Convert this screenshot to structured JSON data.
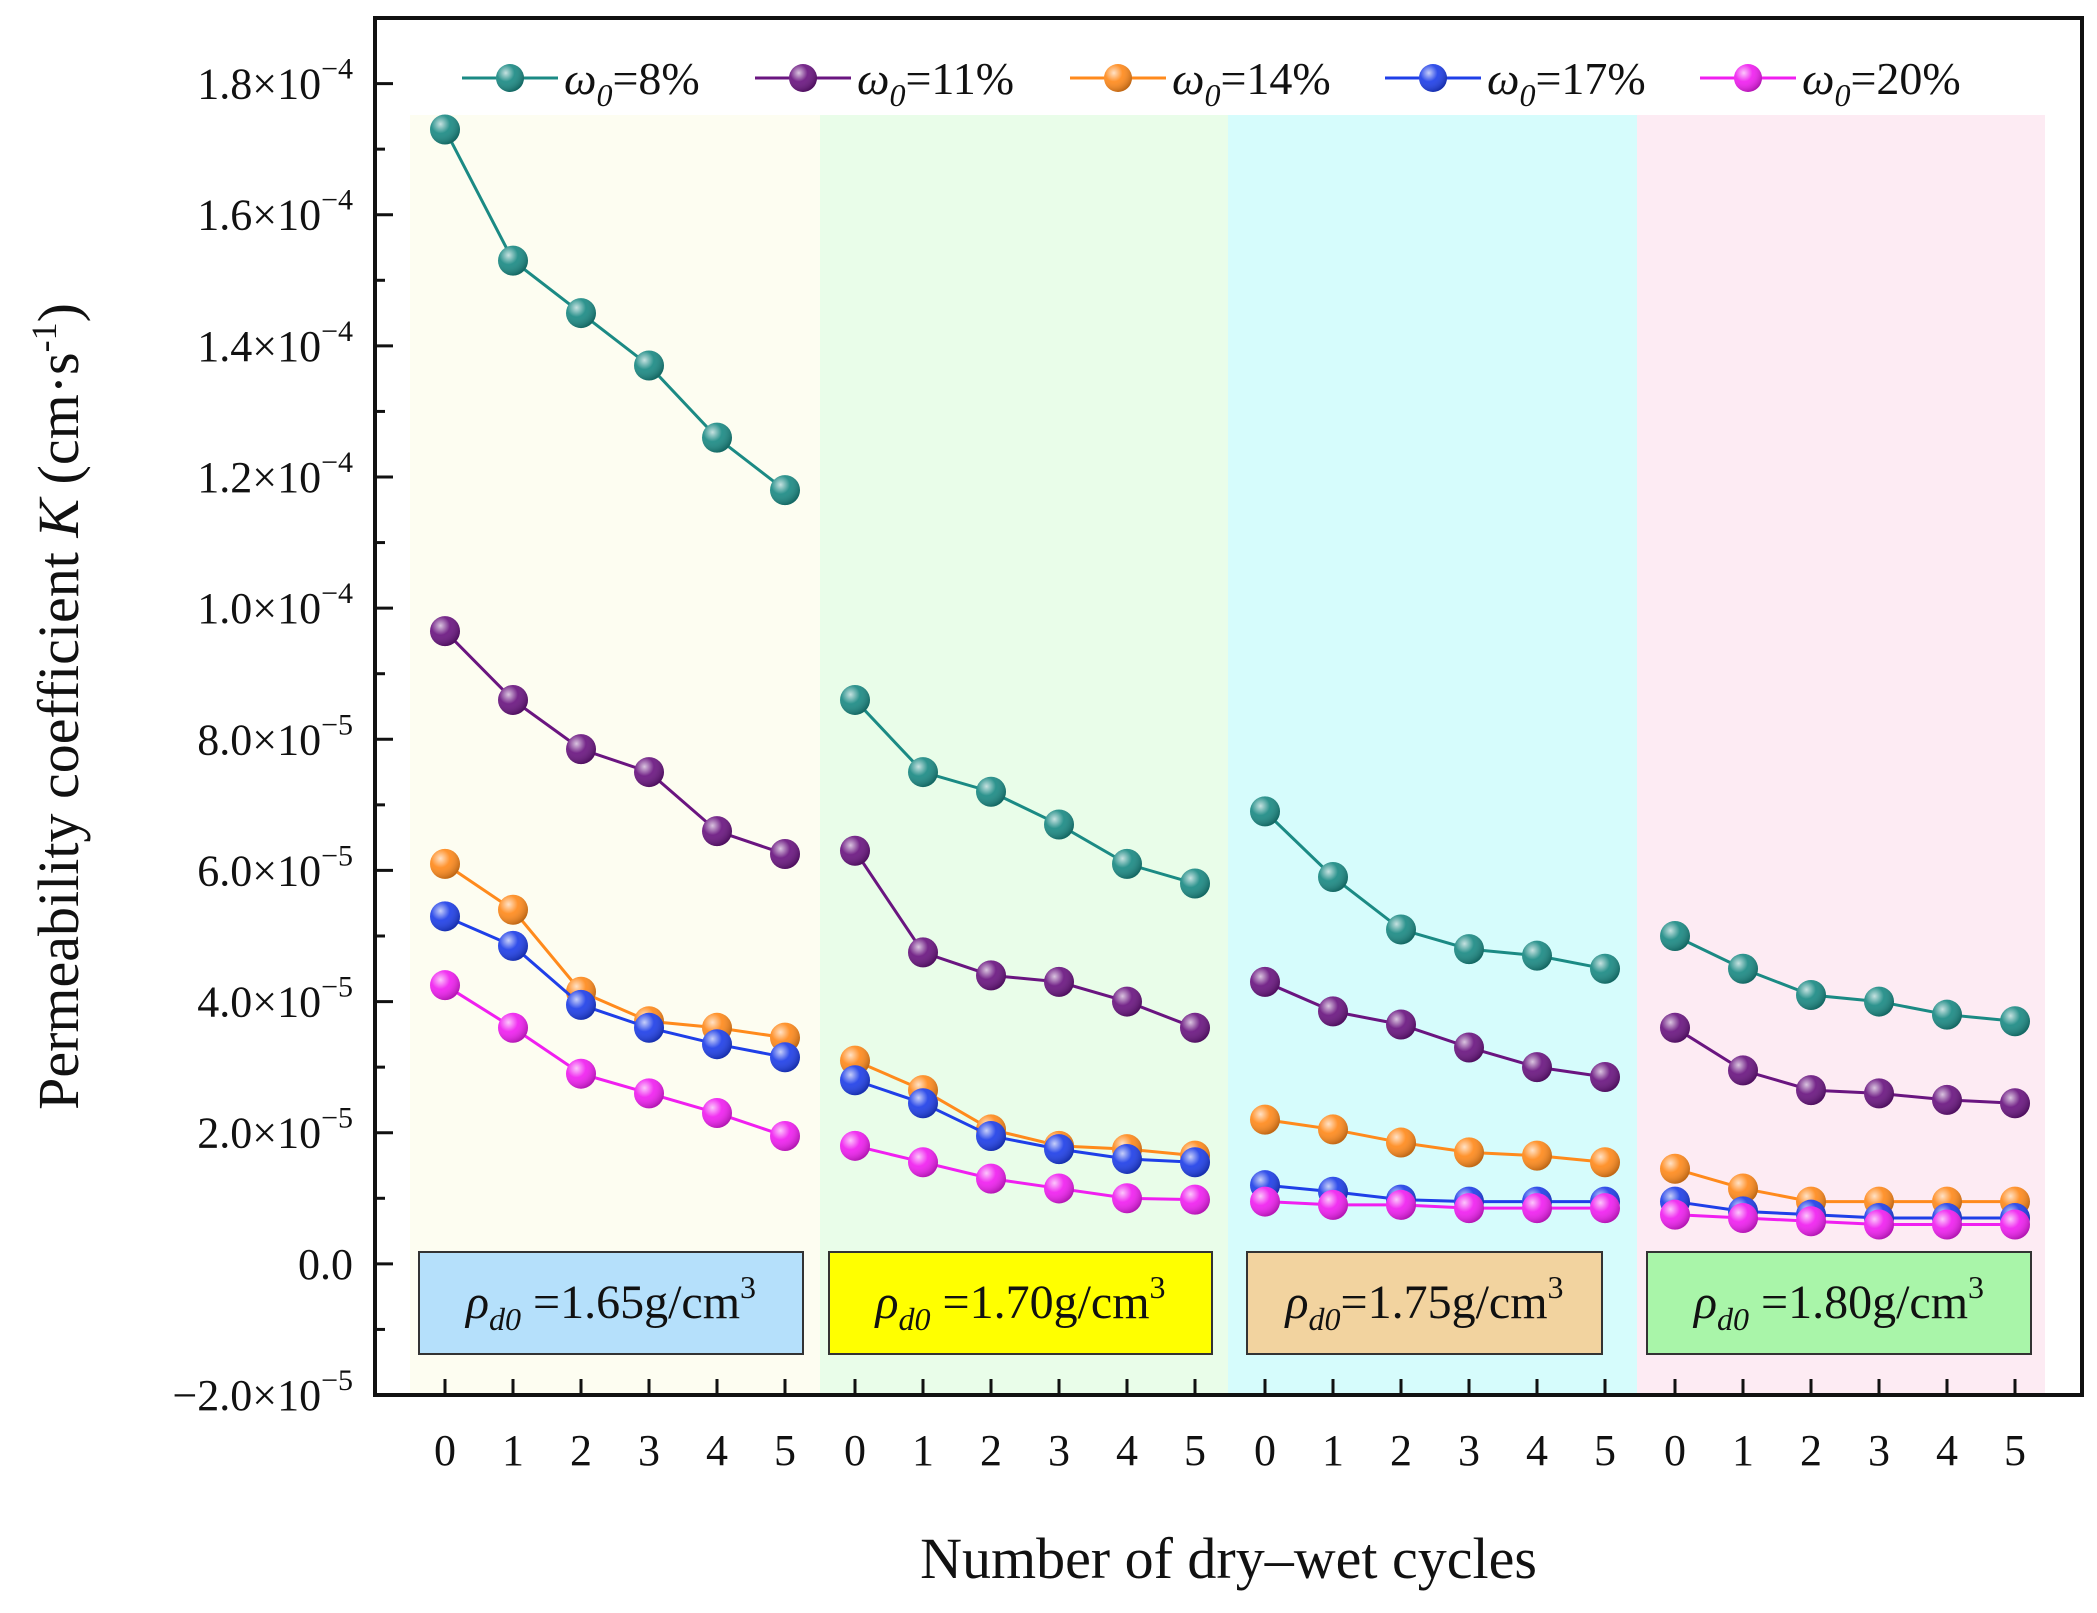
{
  "chart_data": {
    "type": "line",
    "title": "",
    "xlabel": "Number of dry–wet cycles",
    "ylabel": "Permeability coefficient K (cm·s⁻¹)",
    "ylabel_parts": {
      "prefix": "Permeability coefficient ",
      "symbol": "K",
      "unit_open": " (cm·s",
      "unit_sup": "-1",
      "unit_close": ")"
    },
    "ylim": [
      -2e-05,
      0.00019
    ],
    "yticks": [
      {
        "value": -2e-05,
        "mantissa": "−2.0×10",
        "exp": "−5"
      },
      {
        "value": 0,
        "mantissa": "0.0",
        "exp": ""
      },
      {
        "value": 2e-05,
        "mantissa": "2.0×10",
        "exp": "−5"
      },
      {
        "value": 4e-05,
        "mantissa": "4.0×10",
        "exp": "−5"
      },
      {
        "value": 6e-05,
        "mantissa": "6.0×10",
        "exp": "−5"
      },
      {
        "value": 8e-05,
        "mantissa": "8.0×10",
        "exp": "−5"
      },
      {
        "value": 0.0001,
        "mantissa": "1.0×10",
        "exp": "−4"
      },
      {
        "value": 0.00012,
        "mantissa": "1.2×10",
        "exp": "−4"
      },
      {
        "value": 0.00014,
        "mantissa": "1.4×10",
        "exp": "−4"
      },
      {
        "value": 0.00016,
        "mantissa": "1.6×10",
        "exp": "−4"
      },
      {
        "value": 0.00018,
        "mantissa": "1.8×10",
        "exp": "−4"
      }
    ],
    "x_ticks": [
      0,
      1,
      2,
      3,
      4,
      5
    ],
    "legend_position": "top",
    "groups": [
      {
        "name": "rho_d0 = 1.65 g/cm3",
        "label_symbol": "ρ",
        "label_sub": "d0",
        "label_text": " =1.65g/cm",
        "label_sup": "3",
        "region_color": "#fdfdf1",
        "label_bg": "#b5e0fb"
      },
      {
        "name": "rho_d0 = 1.70 g/cm3",
        "label_symbol": "ρ",
        "label_sub": "d0",
        "label_text": " =1.70g/cm",
        "label_sup": "3",
        "region_color": "#e9fde9",
        "label_bg": "#ffff00"
      },
      {
        "name": "rho_d0 = 1.75 g/cm3",
        "label_symbol": "ρ",
        "label_sub": "d0",
        "label_text": "=1.75g/cm",
        "label_sup": "3",
        "region_color": "#d6fcfc",
        "label_bg": "#f2d39f"
      },
      {
        "name": "rho_d0 = 1.80 g/cm3",
        "label_symbol": "ρ",
        "label_sub": "d0",
        "label_text": " =1.80g/cm",
        "label_sup": "3",
        "region_color": "#fdebf3",
        "label_bg": "#a9f5a9"
      }
    ],
    "series": [
      {
        "name": "ω0=8%",
        "label_sub": "0",
        "label_rest": "=8%",
        "color": "#1b8a84",
        "values": [
          [
            0.000173,
            0.000153,
            0.000145,
            0.000137,
            0.000126,
            0.000118
          ],
          [
            8.6e-05,
            7.5e-05,
            7.2e-05,
            6.7e-05,
            6.1e-05,
            5.8e-05
          ],
          [
            6.9e-05,
            5.9e-05,
            5.1e-05,
            4.8e-05,
            4.7e-05,
            4.5e-05
          ],
          [
            5e-05,
            4.5e-05,
            4.1e-05,
            4e-05,
            3.8e-05,
            3.7e-05
          ]
        ]
      },
      {
        "name": "ω0=11%",
        "label_sub": "0",
        "label_rest": "=11%",
        "color": "#6a1580",
        "values": [
          [
            9.65e-05,
            8.6e-05,
            7.85e-05,
            7.5e-05,
            6.6e-05,
            6.25e-05
          ],
          [
            6.3e-05,
            4.75e-05,
            4.4e-05,
            4.3e-05,
            4e-05,
            3.6e-05
          ],
          [
            4.3e-05,
            3.85e-05,
            3.65e-05,
            3.3e-05,
            3e-05,
            2.85e-05
          ],
          [
            3.6e-05,
            2.95e-05,
            2.65e-05,
            2.6e-05,
            2.5e-05,
            2.45e-05
          ]
        ]
      },
      {
        "name": "ω0=14%",
        "label_sub": "0",
        "label_rest": "=14%",
        "color": "#ff8a1c",
        "values": [
          [
            6.1e-05,
            5.4e-05,
            4.15e-05,
            3.7e-05,
            3.6e-05,
            3.45e-05
          ],
          [
            3.1e-05,
            2.65e-05,
            2.05e-05,
            1.8e-05,
            1.75e-05,
            1.65e-05
          ],
          [
            2.2e-05,
            2.05e-05,
            1.85e-05,
            1.7e-05,
            1.65e-05,
            1.55e-05
          ],
          [
            1.45e-05,
            1.15e-05,
            9.5e-06,
            9.5e-06,
            9.5e-06,
            9.5e-06
          ]
        ]
      },
      {
        "name": "ω0=17%",
        "label_sub": "0",
        "label_rest": "=17%",
        "color": "#1f3fe8",
        "values": [
          [
            5.3e-05,
            4.85e-05,
            3.95e-05,
            3.6e-05,
            3.35e-05,
            3.15e-05
          ],
          [
            2.8e-05,
            2.45e-05,
            1.95e-05,
            1.75e-05,
            1.6e-05,
            1.55e-05
          ],
          [
            1.2e-05,
            1.1e-05,
            9.8e-06,
            9.5e-06,
            9.5e-06,
            9.5e-06
          ],
          [
            9.5e-06,
            8e-06,
            7.5e-06,
            7e-06,
            7e-06,
            7e-06
          ]
        ]
      },
      {
        "name": "ω0=20%",
        "label_sub": "0",
        "label_rest": "=20%",
        "color": "#f01ff0",
        "values": [
          [
            4.25e-05,
            3.6e-05,
            2.9e-05,
            2.6e-05,
            2.3e-05,
            1.95e-05
          ],
          [
            1.8e-05,
            1.55e-05,
            1.3e-05,
            1.15e-05,
            1e-05,
            9.8e-06
          ],
          [
            9.5e-06,
            9e-06,
            9e-06,
            8.5e-06,
            8.5e-06,
            8.5e-06
          ],
          [
            7.5e-06,
            7e-06,
            6.5e-06,
            6e-06,
            6e-06,
            6e-06
          ]
        ]
      }
    ]
  }
}
